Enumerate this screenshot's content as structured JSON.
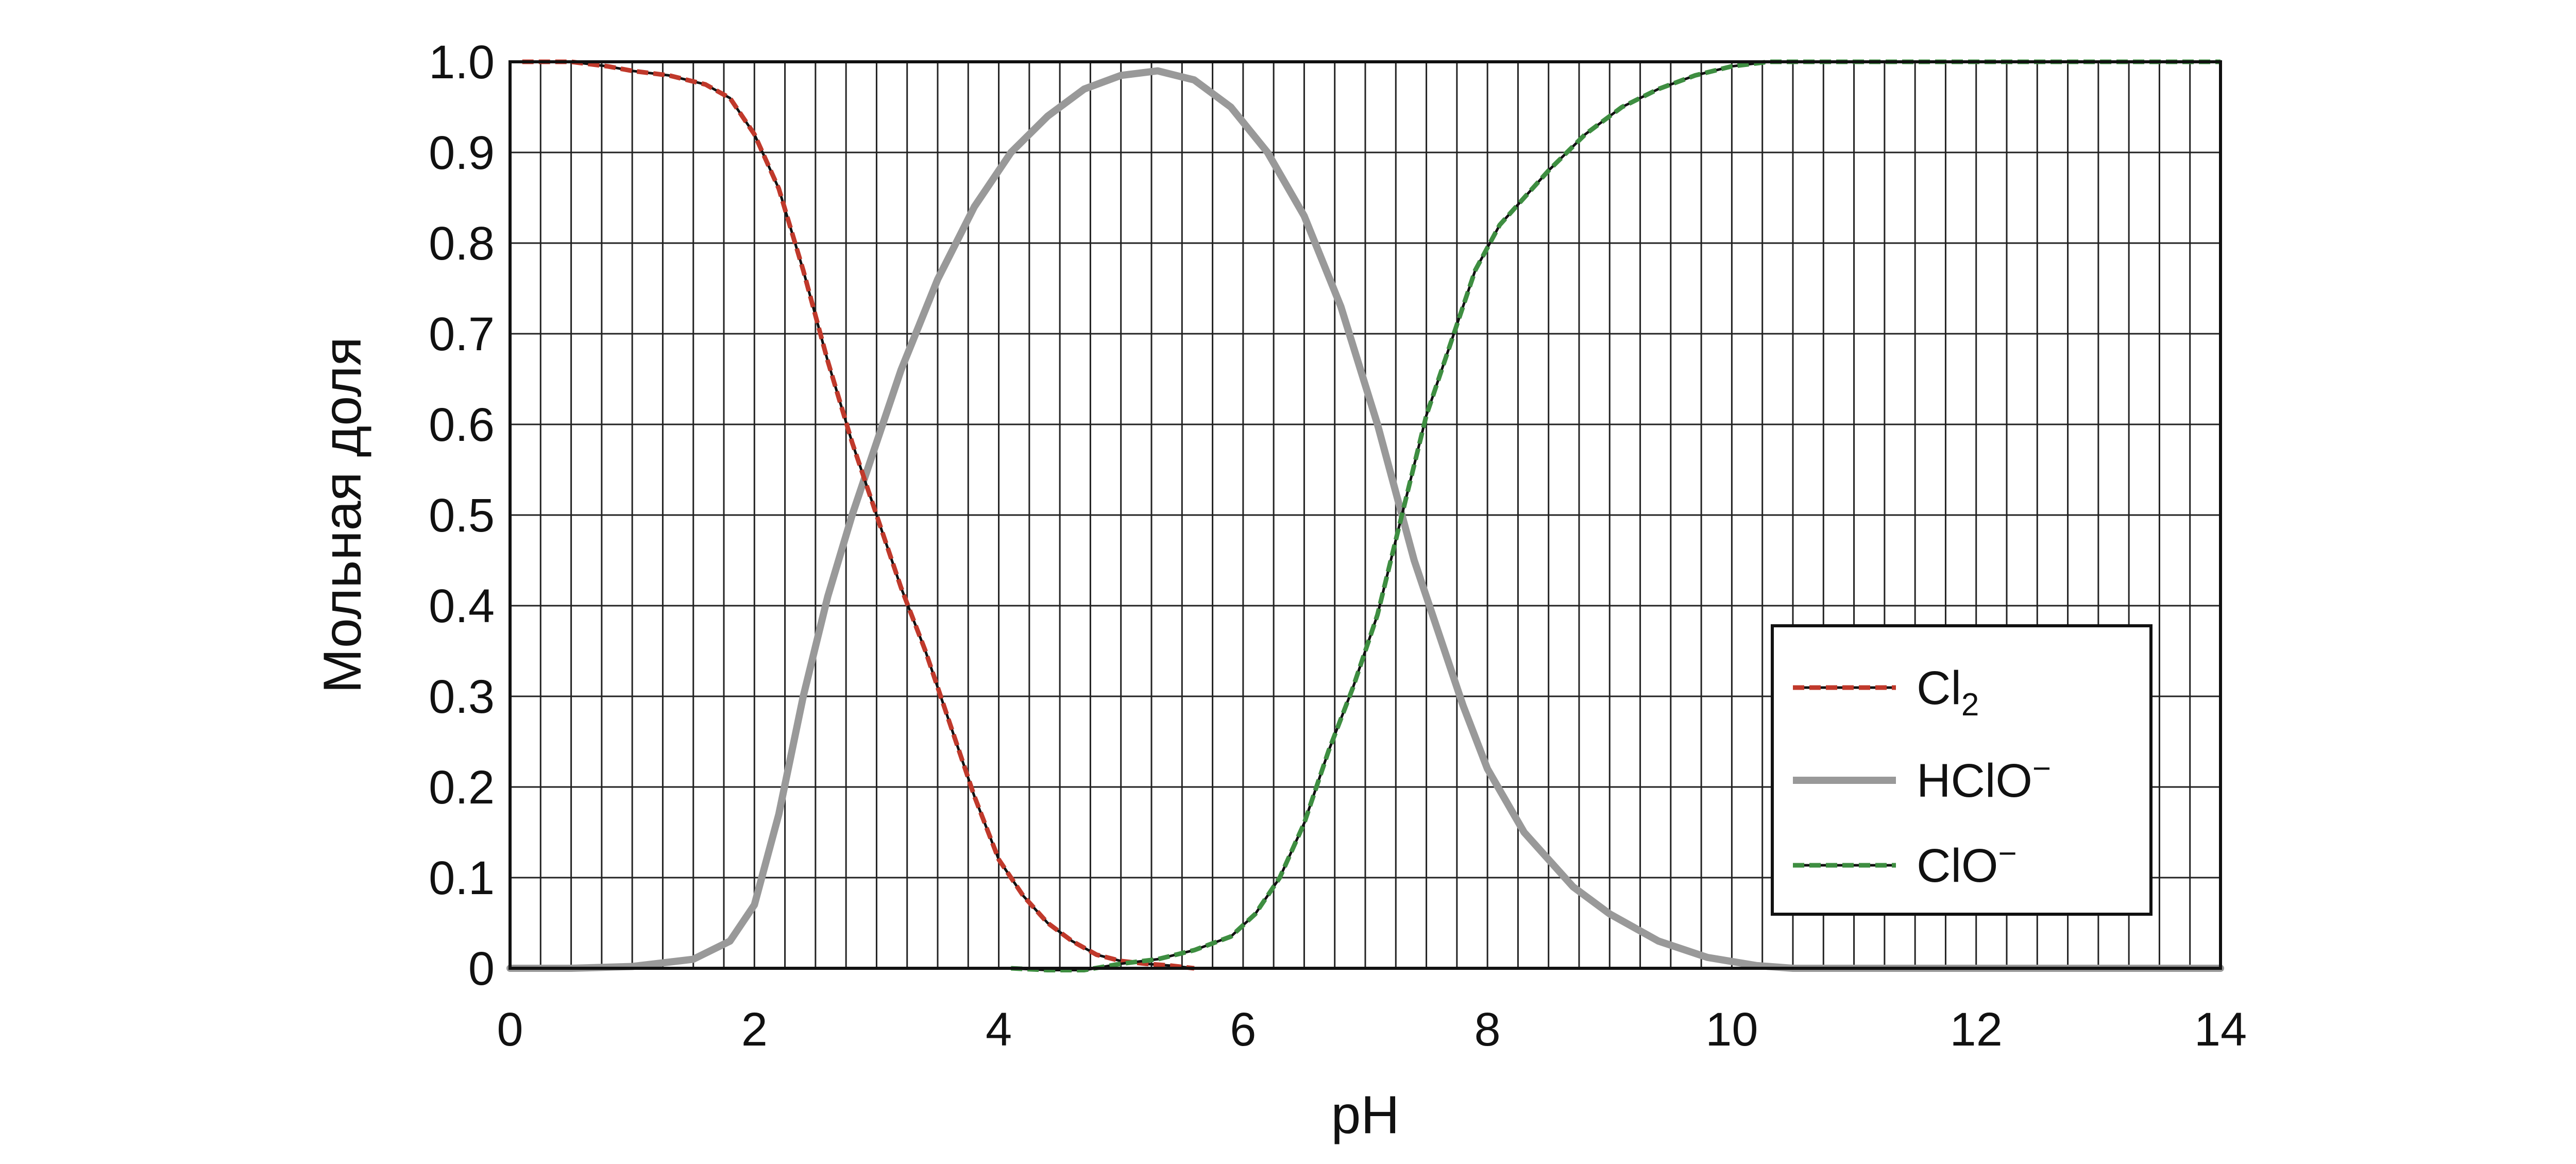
{
  "chart_data": {
    "type": "line",
    "title": "",
    "xlabel": "pH",
    "ylabel": "Мольная доля",
    "xlim": [
      0,
      14
    ],
    "ylim": [
      0,
      1
    ],
    "x_ticks": [
      "0",
      "2",
      "4",
      "6",
      "8",
      "10",
      "12",
      "14"
    ],
    "y_ticks": [
      "0",
      "0.1",
      "0.2",
      "0.3",
      "0.4",
      "0.5",
      "0.6",
      "0.7",
      "0.8",
      "0.9",
      "1.0"
    ],
    "grid": true,
    "legend_position": "bottom-right",
    "series": [
      {
        "key": "cl2",
        "name": "Cl2",
        "label_main": "Cl",
        "label_sub": "2",
        "color": "#c0392b",
        "style": "wavy",
        "points": [
          [
            0.1,
            1.0
          ],
          [
            0.5,
            1.0
          ],
          [
            0.8,
            0.995
          ],
          [
            1.0,
            0.99
          ],
          [
            1.3,
            0.985
          ],
          [
            1.6,
            0.975
          ],
          [
            1.8,
            0.96
          ],
          [
            2.0,
            0.92
          ],
          [
            2.2,
            0.86
          ],
          [
            2.4,
            0.77
          ],
          [
            2.6,
            0.67
          ],
          [
            2.8,
            0.58
          ],
          [
            3.0,
            0.5
          ],
          [
            3.2,
            0.42
          ],
          [
            3.4,
            0.35
          ],
          [
            3.6,
            0.27
          ],
          [
            3.8,
            0.19
          ],
          [
            4.0,
            0.12
          ],
          [
            4.2,
            0.08
          ],
          [
            4.4,
            0.05
          ],
          [
            4.6,
            0.03
          ],
          [
            4.8,
            0.015
          ],
          [
            5.0,
            0.008
          ],
          [
            5.2,
            0.005
          ],
          [
            5.4,
            0.003
          ],
          [
            5.6,
            0.0
          ]
        ]
      },
      {
        "key": "hclo",
        "name": "HClO−",
        "label_main": "HClO",
        "label_sup": "−",
        "color": "#999999",
        "style": "solid",
        "points": [
          [
            0,
            0
          ],
          [
            0.5,
            0.0
          ],
          [
            1.0,
            0.002
          ],
          [
            1.5,
            0.01
          ],
          [
            1.8,
            0.03
          ],
          [
            2.0,
            0.07
          ],
          [
            2.2,
            0.17
          ],
          [
            2.4,
            0.3
          ],
          [
            2.6,
            0.41
          ],
          [
            2.8,
            0.5
          ],
          [
            3.0,
            0.58
          ],
          [
            3.2,
            0.66
          ],
          [
            3.5,
            0.76
          ],
          [
            3.8,
            0.84
          ],
          [
            4.1,
            0.9
          ],
          [
            4.4,
            0.94
          ],
          [
            4.7,
            0.97
          ],
          [
            5.0,
            0.985
          ],
          [
            5.3,
            0.99
          ],
          [
            5.6,
            0.98
          ],
          [
            5.9,
            0.95
          ],
          [
            6.2,
            0.9
          ],
          [
            6.5,
            0.83
          ],
          [
            6.8,
            0.73
          ],
          [
            7.1,
            0.6
          ],
          [
            7.4,
            0.45
          ],
          [
            7.6,
            0.37
          ],
          [
            7.8,
            0.29
          ],
          [
            8.0,
            0.22
          ],
          [
            8.3,
            0.15
          ],
          [
            8.7,
            0.09
          ],
          [
            9.0,
            0.06
          ],
          [
            9.4,
            0.03
          ],
          [
            9.8,
            0.012
          ],
          [
            10.2,
            0.003
          ],
          [
            10.5,
            0.0
          ],
          [
            12,
            0.0
          ],
          [
            14,
            0.0
          ]
        ]
      },
      {
        "key": "clo",
        "name": "ClO−",
        "label_main": "ClO",
        "label_sup": "−",
        "color": "#3e8e41",
        "style": "wavy",
        "points": [
          [
            4.1,
            0.0
          ],
          [
            4.4,
            -0.002
          ],
          [
            4.7,
            -0.002
          ],
          [
            5.0,
            0.005
          ],
          [
            5.3,
            0.01
          ],
          [
            5.6,
            0.02
          ],
          [
            5.9,
            0.035
          ],
          [
            6.1,
            0.06
          ],
          [
            6.3,
            0.1
          ],
          [
            6.5,
            0.16
          ],
          [
            6.7,
            0.24
          ],
          [
            6.9,
            0.31
          ],
          [
            7.1,
            0.39
          ],
          [
            7.3,
            0.5
          ],
          [
            7.5,
            0.61
          ],
          [
            7.7,
            0.69
          ],
          [
            7.9,
            0.77
          ],
          [
            8.1,
            0.82
          ],
          [
            8.3,
            0.85
          ],
          [
            8.5,
            0.88
          ],
          [
            8.8,
            0.92
          ],
          [
            9.1,
            0.95
          ],
          [
            9.4,
            0.97
          ],
          [
            9.7,
            0.985
          ],
          [
            10.0,
            0.995
          ],
          [
            10.3,
            1.0
          ],
          [
            12,
            1.0
          ],
          [
            14,
            1.0
          ]
        ]
      }
    ]
  }
}
